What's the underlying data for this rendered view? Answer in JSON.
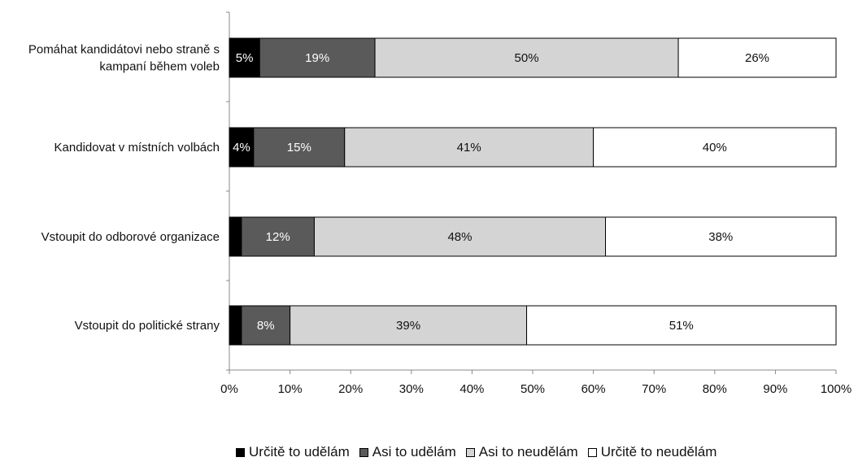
{
  "chart_data": {
    "type": "bar",
    "orientation": "horizontal",
    "stacked": true,
    "percent": true,
    "categories": [
      "Pomáhat kandidátovi nebo straně s kampaní během voleb",
      "Kandidovat v místních volbách",
      "Vstoupit do odborové organizace",
      "Vstoupit do politické strany"
    ],
    "category_lines": [
      [
        "Pomáhat kandidátovi nebo straně s",
        "kampaní během voleb"
      ],
      [
        "Kandidovat v místních volbách"
      ],
      [
        "Vstoupit do odborové organizace"
      ],
      [
        "Vstoupit do politické strany"
      ]
    ],
    "series": [
      {
        "name": "Určitě to udělám",
        "color": "#000000",
        "values": [
          5,
          4,
          2,
          2
        ],
        "labels": [
          "5%",
          "4%",
          "",
          ""
        ],
        "label_color": "#ffffff"
      },
      {
        "name": "Asi to udělám",
        "color": "#5a5a5a",
        "values": [
          19,
          15,
          12,
          8
        ],
        "labels": [
          "19%",
          "15%",
          "12%",
          "8%"
        ],
        "label_color": "#ffffff"
      },
      {
        "name": "Asi to neudělám",
        "color": "#d4d4d4",
        "values": [
          50,
          41,
          48,
          39
        ],
        "labels": [
          "50%",
          "41%",
          "48%",
          "39%"
        ],
        "label_color": "#111111"
      },
      {
        "name": "Určitě to neudělám",
        "color": "#ffffff",
        "values": [
          26,
          40,
          38,
          51
        ],
        "labels": [
          "26%",
          "40%",
          "38%",
          "51%"
        ],
        "label_color": "#111111"
      }
    ],
    "xlim": [
      0,
      100
    ],
    "x_ticks": [
      0,
      10,
      20,
      30,
      40,
      50,
      60,
      70,
      80,
      90,
      100
    ],
    "x_tick_labels": [
      "0%",
      "10%",
      "20%",
      "30%",
      "40%",
      "50%",
      "60%",
      "70%",
      "80%",
      "90%",
      "100%"
    ],
    "title": "",
    "xlabel": "",
    "ylabel": "",
    "grid": false,
    "legend_position": "bottom"
  }
}
